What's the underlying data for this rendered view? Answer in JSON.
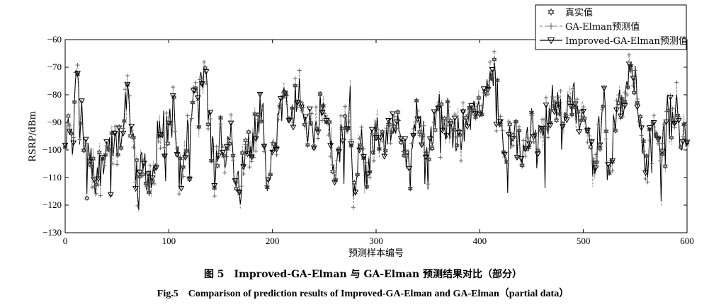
{
  "chart_data": {
    "type": "line",
    "title": "",
    "xlabel": "预测样本编号",
    "ylabel": "RSRP/dBm",
    "xlim": [
      0,
      600
    ],
    "ylim": [
      -130,
      -60
    ],
    "x_ticks": [
      0,
      100,
      200,
      300,
      400,
      500,
      600
    ],
    "y_ticks": [
      -60,
      -70,
      -80,
      -90,
      -100,
      -110,
      -120,
      -130
    ],
    "grid": false,
    "legend_position": "top-right",
    "series": [
      {
        "name": "真实值",
        "marker": "hexagram",
        "line": "none",
        "color": "#555555"
      },
      {
        "name": "GA-Elman预测值",
        "marker": "plus",
        "line": "dashed",
        "color": "#777777"
      },
      {
        "name": "Improved-GA-Elman预测值",
        "marker": "triangle-down",
        "line": "solid",
        "color": "#000000"
      }
    ],
    "sampled_points": {
      "x": [
        0,
        8,
        10,
        18,
        25,
        30,
        40,
        50,
        55,
        60,
        65,
        70,
        75,
        80,
        85,
        90,
        100,
        105,
        110,
        115,
        125,
        135,
        140,
        145,
        150,
        155,
        160,
        165,
        170,
        175,
        180,
        190,
        195,
        200,
        210,
        220,
        225,
        230,
        240,
        250,
        255,
        260,
        270,
        275,
        278,
        285,
        290,
        300,
        310,
        320,
        330,
        340,
        350,
        360,
        370,
        380,
        390,
        400,
        405,
        410,
        415,
        420,
        425,
        430,
        440,
        450,
        460,
        470,
        480,
        490,
        500,
        505,
        510,
        520,
        525,
        530,
        540,
        545,
        550,
        555,
        560,
        565,
        570,
        575,
        580,
        585,
        590,
        595,
        600
      ],
      "y": [
        -92,
        -97,
        -73,
        -95,
        -104,
        -110,
        -101,
        -96,
        -93,
        -77,
        -99,
        -113,
        -97,
        -112,
        -108,
        -88,
        -92,
        -84,
        -110,
        -102,
        -80,
        -75,
        -90,
        -112,
        -92,
        -102,
        -95,
        -115,
        -108,
        -100,
        -97,
        -83,
        -115,
        -95,
        -82,
        -85,
        -78,
        -90,
        -93,
        -82,
        -95,
        -107,
        -90,
        -83,
        -120,
        -95,
        -109,
        -92,
        -97,
        -88,
        -105,
        -87,
        -100,
        -85,
        -90,
        -95,
        -88,
        -85,
        -82,
        -75,
        -72,
        -90,
        -110,
        -93,
        -100,
        -92,
        -95,
        -83,
        -88,
        -80,
        -92,
        -98,
        -105,
        -80,
        -112,
        -88,
        -82,
        -70,
        -75,
        -90,
        -110,
        -95,
        -88,
        -100,
        -85,
        -90,
        -82,
        -98,
        -93
      ]
    }
  },
  "legend": {
    "items": [
      {
        "label": "真实值"
      },
      {
        "label": "GA-Elman预测值"
      },
      {
        "label": "Improved-GA-Elman预测值"
      }
    ]
  },
  "caption": {
    "cn": "图 5　Improved-GA-Elman 与 GA-Elman 预测结果对比（部分）",
    "en": "Fig.5　Comparison of prediction results of Improved-GA-Elman and GA-Elman（partial data）"
  }
}
